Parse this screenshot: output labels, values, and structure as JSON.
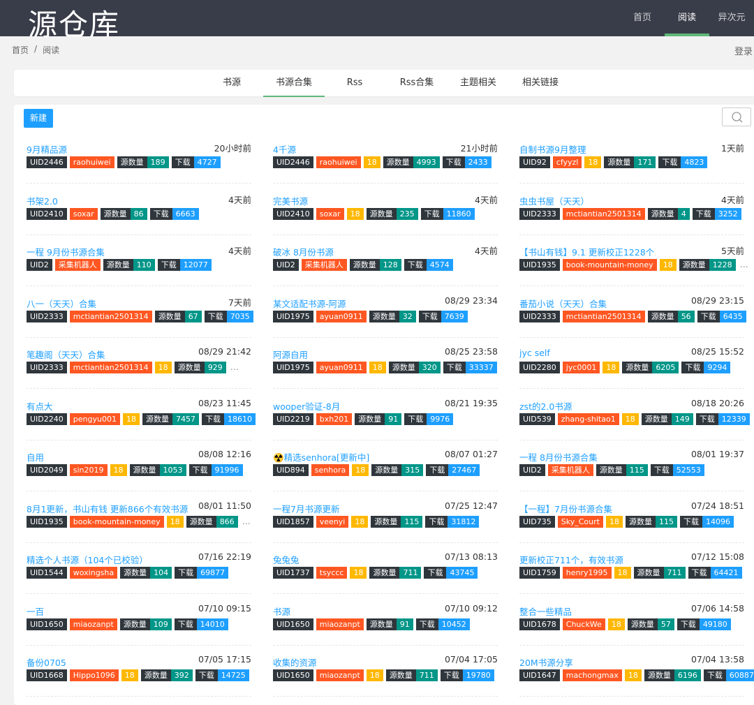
{
  "header": {
    "logo": "源仓库",
    "nav": [
      "首页",
      "阅读",
      "异次元"
    ],
    "active_nav": 1
  },
  "breadcrumb": {
    "items": [
      "首页",
      "阅读"
    ],
    "separator": "/"
  },
  "login": "登录",
  "tabs": {
    "items": [
      "书源",
      "书源合集",
      "Rss",
      "Rss合集",
      "主题相关",
      "相关链接"
    ],
    "active": 1
  },
  "new_button": "新建",
  "labels": {
    "count": "源数量",
    "download": "下载"
  },
  "cards": [
    {
      "title": "9月精品源",
      "time": "20小时前",
      "uid": "UID2446",
      "user": "raohuiwei",
      "age": null,
      "count": 189,
      "downloads": 4727
    },
    {
      "title": "4千源",
      "time": "21小时前",
      "uid": "UID2446",
      "user": "raohuiwei",
      "age": 18,
      "count": 4993,
      "downloads": 2433
    },
    {
      "title": "自制书源9月整理",
      "time": "1天前",
      "uid": "UID92",
      "user": "cfyyzl",
      "age": 18,
      "count": 171,
      "downloads": 4823
    },
    {
      "title": "书架2.0",
      "time": "4天前",
      "uid": "UID2410",
      "user": "soxar",
      "age": null,
      "count": 86,
      "downloads": 6663
    },
    {
      "title": "完美书源",
      "time": "4天前",
      "uid": "UID2410",
      "user": "soxar",
      "age": 18,
      "count": 235,
      "downloads": 11860
    },
    {
      "title": "虫虫书屋（天天）",
      "time": "4天前",
      "uid": "UID2333",
      "user": "mctiantian2501314",
      "age": null,
      "count": 4,
      "downloads": 3252
    },
    {
      "title": "一程 9月份书源合集",
      "time": "4天前",
      "uid": "UID2",
      "user": "采集机器人",
      "age": null,
      "count": 110,
      "downloads": 12077
    },
    {
      "title": "破冰 8月份书源",
      "time": "4天前",
      "uid": "UID2",
      "user": "采集机器人",
      "age": null,
      "count": 128,
      "downloads": 4574
    },
    {
      "title": "【书山有钱】9.1 更新校正1228个",
      "time": "5天前",
      "uid": "UID1935",
      "user": "book-mountain-money",
      "age": 18,
      "count": 1228,
      "more": "…"
    },
    {
      "title": "八一（天天）合集",
      "time": "7天前",
      "uid": "UID2333",
      "user": "mctiantian2501314",
      "age": null,
      "count": 67,
      "downloads": 7035
    },
    {
      "title": "某文适配书源-阿源",
      "time": "08/29 23:34",
      "uid": "UID1975",
      "user": "ayuan0911",
      "age": null,
      "count": 32,
      "downloads": 7639
    },
    {
      "title": "番茄小说（天天）合集",
      "time": "08/29 23:15",
      "uid": "UID2333",
      "user": "mctiantian2501314",
      "age": null,
      "count": 56,
      "downloads": 6435
    },
    {
      "title": "笔趣阁（天天）合集",
      "time": "08/29 21:42",
      "uid": "UID2333",
      "user": "mctiantian2501314",
      "age": 18,
      "count": 929,
      "more": "…"
    },
    {
      "title": "阿源自用",
      "time": "08/25 23:58",
      "uid": "UID1975",
      "user": "ayuan0911",
      "age": 18,
      "count": 320,
      "downloads": 33337
    },
    {
      "title": "jyc self",
      "time": "08/25 15:52",
      "uid": "UID2280",
      "user": "jyc0001",
      "age": 18,
      "count": 6205,
      "downloads": 9294
    },
    {
      "title": "有点大",
      "time": "08/23 11:45",
      "uid": "UID2240",
      "user": "pengyu001",
      "age": 18,
      "count": 7457,
      "downloads": 18610
    },
    {
      "title": "wooper验证-8月",
      "time": "08/21 19:35",
      "uid": "UID2219",
      "user": "bxh201",
      "age": null,
      "count": 91,
      "downloads": 9976
    },
    {
      "title": "zst的2.0书源",
      "time": "08/18 20:26",
      "uid": "UID539",
      "user": "zhang-shitao1",
      "age": 18,
      "count": 149,
      "downloads": 12339
    },
    {
      "title": "自用",
      "time": "08/08 12:16",
      "uid": "UID2049",
      "user": "sin2019",
      "age": 18,
      "count": 1053,
      "downloads": 91996
    },
    {
      "title": "☢️精选senhora[更新中]",
      "time": "08/07 01:27",
      "uid": "UID894",
      "user": "senhora",
      "age": 18,
      "count": 315,
      "downloads": 27467
    },
    {
      "title": "一程 8月份书源合集",
      "time": "08/01 19:37",
      "uid": "UID2",
      "user": "采集机器人",
      "age": null,
      "count": 115,
      "downloads": 52553
    },
    {
      "title": "8月1更新，书山有钱 更新866个有效书源",
      "time": "08/01 11:50",
      "uid": "UID1935",
      "user": "book-mountain-money",
      "age": 18,
      "count": 866,
      "more": "…"
    },
    {
      "title": "一程7月书源更新",
      "time": "07/25 12:47",
      "uid": "UID1857",
      "user": "veenyi",
      "age": 18,
      "count": 115,
      "downloads": 31812
    },
    {
      "title": "【一程】7月份书源合集",
      "time": "07/24 18:51",
      "uid": "UID735",
      "user": "Sky_Court",
      "age": 18,
      "count": 115,
      "downloads": 14096
    },
    {
      "title": "精选个人书源（104个已校验）",
      "time": "07/16 22:19",
      "uid": "UID1544",
      "user": "woxingsha",
      "age": null,
      "count": 104,
      "downloads": 69877
    },
    {
      "title": "兔兔兔",
      "time": "07/13 08:13",
      "uid": "UID1737",
      "user": "tsyccc",
      "age": 18,
      "count": 711,
      "downloads": 43745
    },
    {
      "title": "更新校正711个，有效书源",
      "time": "07/12 15:08",
      "uid": "UID1759",
      "user": "henry1995",
      "age": 18,
      "count": 711,
      "downloads": 64421
    },
    {
      "title": "一百",
      "time": "07/10 09:15",
      "uid": "UID1650",
      "user": "miaozanpt",
      "age": null,
      "count": 109,
      "downloads": 14010
    },
    {
      "title": "书源",
      "time": "07/10 09:12",
      "uid": "UID1650",
      "user": "miaozanpt",
      "age": null,
      "count": 91,
      "downloads": 10452
    },
    {
      "title": "整合一些精品",
      "time": "07/06 14:58",
      "uid": "UID1678",
      "user": "ChuckWe",
      "age": 18,
      "count": 57,
      "downloads": 49180
    },
    {
      "title": "备份0705",
      "time": "07/05 17:15",
      "uid": "UID1668",
      "user": "Hippo1096",
      "age": 18,
      "count": 392,
      "downloads": 14725
    },
    {
      "title": "收集的资源",
      "time": "07/04 17:05",
      "uid": "UID1650",
      "user": "miaozanpt",
      "age": 18,
      "count": 711,
      "downloads": 19780
    },
    {
      "title": "20M书源分享",
      "time": "07/04 13:58",
      "uid": "UID1647",
      "user": "machongmax",
      "age": 18,
      "count": 6196,
      "downloads": 60887
    }
  ]
}
